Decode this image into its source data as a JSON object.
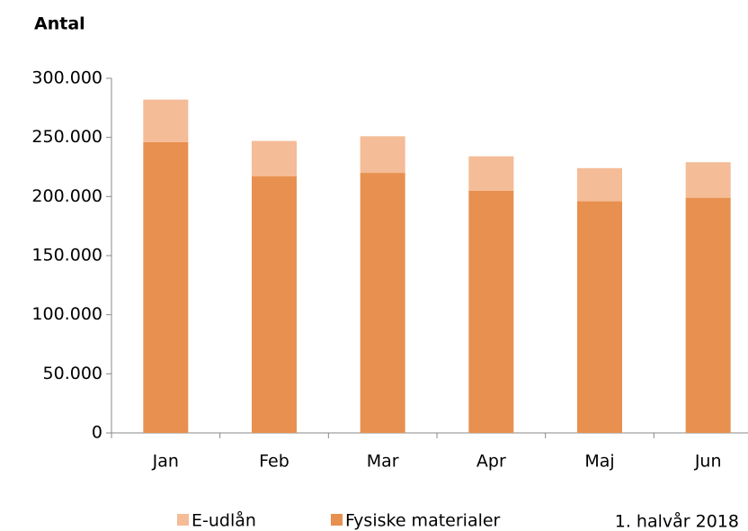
{
  "chart_data": {
    "type": "stacked_bar",
    "y_axis_title": "Antal",
    "annotation": "1. halvår 2018",
    "categories": [
      "Jan",
      "Feb",
      "Mar",
      "Apr",
      "Maj",
      "Jun"
    ],
    "series": [
      {
        "name": "E-udlån",
        "color": "#f4bc97",
        "values": [
          36000,
          30000,
          31000,
          29000,
          28000,
          30000
        ]
      },
      {
        "name": "Fysiske materialer",
        "color": "#e8904f",
        "values": [
          246000,
          217000,
          220000,
          205000,
          196000,
          199000
        ]
      }
    ],
    "ylim": [
      0,
      300000
    ],
    "yticks": [
      0,
      {
        "value": 50000,
        "label": "50.000"
      },
      {
        "value": 100000,
        "label": "100.000"
      },
      {
        "value": 150000,
        "label": "150.000"
      },
      {
        "value": 200000,
        "label": "200.000"
      },
      {
        "value": 250000,
        "label": "250.000"
      },
      {
        "value": 300000,
        "label": "300.000"
      }
    ],
    "legend": "bottom"
  }
}
